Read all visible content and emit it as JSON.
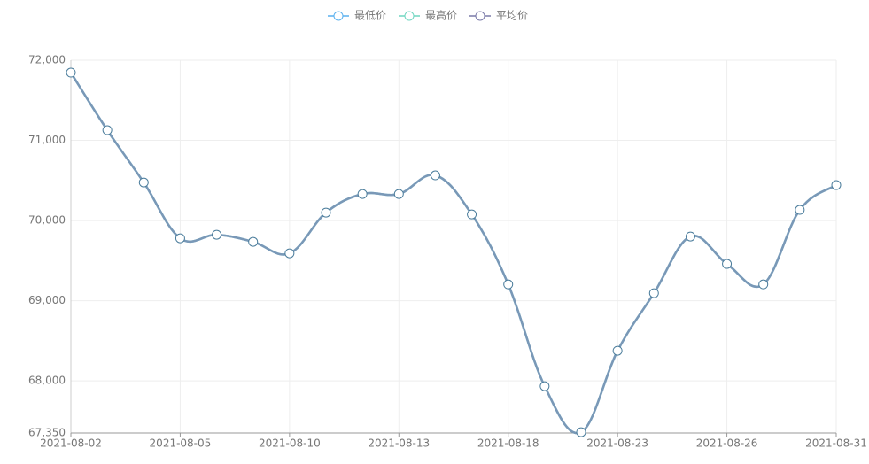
{
  "chart_data": {
    "type": "line",
    "categories": [
      "2021-08-02",
      null,
      null,
      "2021-08-05",
      null,
      null,
      "2021-08-10",
      null,
      null,
      "2021-08-13",
      null,
      null,
      "2021-08-18",
      null,
      null,
      "2021-08-23",
      null,
      null,
      "2021-08-26",
      null,
      null,
      "2021-08-31"
    ],
    "series": [
      {
        "name": "最低价",
        "color": "#5ab1ef",
        "values": [
          71845,
          71127,
          70475,
          69779,
          69823,
          69735,
          69591,
          70099,
          70331,
          70331,
          70564,
          70077,
          69204,
          67934,
          67360,
          68376,
          69094,
          69801,
          69459,
          69204,
          70133,
          70442
        ]
      },
      {
        "name": "最高价",
        "color": "#6fd6c0",
        "values": [
          71845,
          71127,
          70475,
          69779,
          69823,
          69735,
          69591,
          70099,
          70331,
          70331,
          70564,
          70077,
          69204,
          67934,
          67360,
          68376,
          69094,
          69801,
          69459,
          69204,
          70133,
          70442
        ]
      },
      {
        "name": "平均价",
        "color": "#7a7aa8",
        "values": [
          71845,
          71127,
          70475,
          69779,
          69823,
          69735,
          69591,
          70099,
          70331,
          70331,
          70564,
          70077,
          69204,
          67934,
          67360,
          68376,
          69094,
          69801,
          69459,
          69204,
          70133,
          70442
        ]
      }
    ],
    "ylim": [
      67350,
      72000
    ],
    "yticks": [
      {
        "value": 67350,
        "label": "67,350"
      },
      {
        "value": 68000,
        "label": "68,000"
      },
      {
        "value": 69000,
        "label": "69,000"
      },
      {
        "value": 70000,
        "label": "70,000"
      },
      {
        "value": 71000,
        "label": "71,000"
      },
      {
        "value": 72000,
        "label": "72,000"
      }
    ],
    "grid": true
  }
}
